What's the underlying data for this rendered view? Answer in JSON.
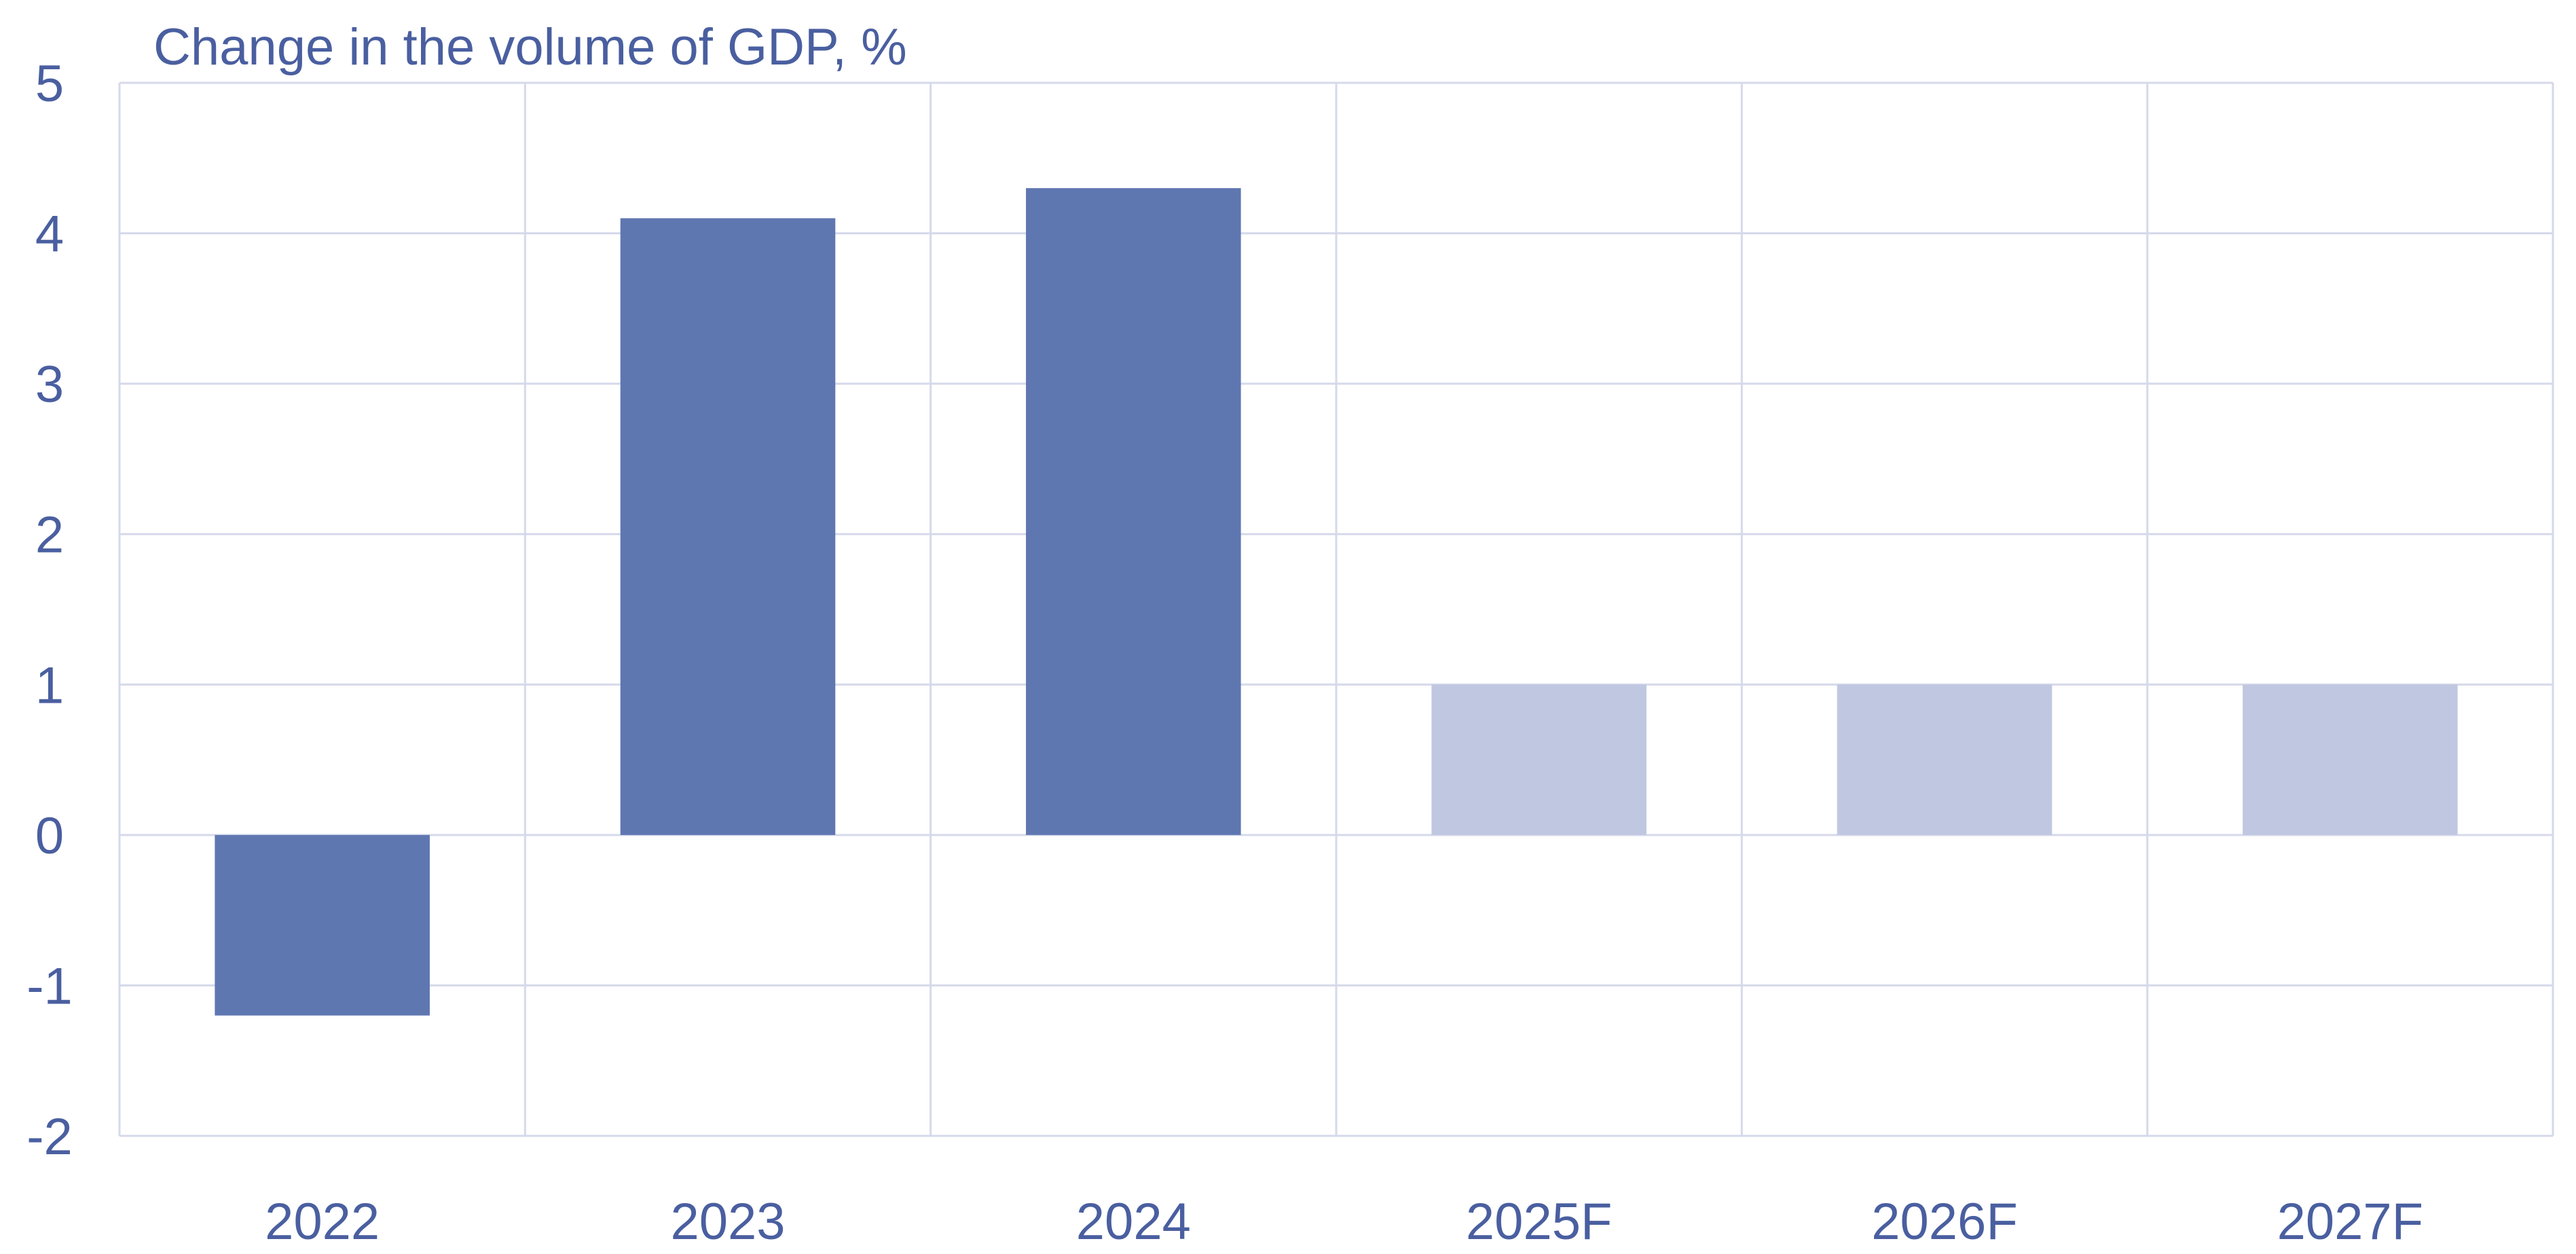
{
  "chart_data": {
    "type": "bar",
    "title": "Change in the volume of GDP, %",
    "xlabel": "",
    "ylabel": "",
    "categories": [
      "2022",
      "2023",
      "2024",
      "2025F",
      "2026F",
      "2027F"
    ],
    "values": [
      -1.2,
      4.1,
      4.3,
      1.0,
      1.0,
      1.0
    ],
    "forecast": [
      false,
      false,
      false,
      true,
      true,
      true
    ],
    "ylim": [
      -2,
      5
    ],
    "yticks": [
      "5",
      "4",
      "3",
      "2",
      "1",
      "0",
      "-1",
      "-2"
    ],
    "grid": true,
    "colors": {
      "actual": "#5f77b1",
      "forecast": "#c0c8e1",
      "grid": "#d5d9ea",
      "text": "#4a5fa0"
    }
  }
}
